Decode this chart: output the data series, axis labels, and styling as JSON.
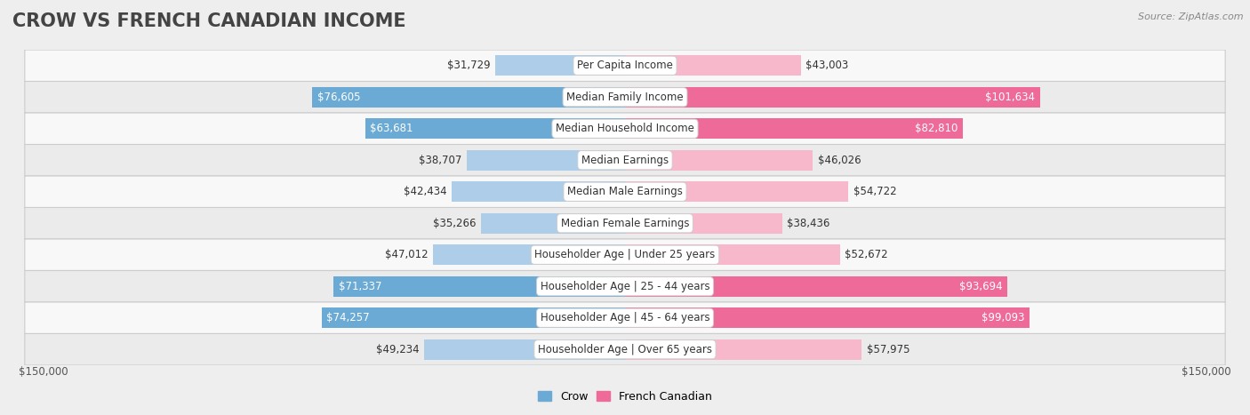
{
  "title": "CROW VS FRENCH CANADIAN INCOME",
  "source": "Source: ZipAtlas.com",
  "categories": [
    "Per Capita Income",
    "Median Family Income",
    "Median Household Income",
    "Median Earnings",
    "Median Male Earnings",
    "Median Female Earnings",
    "Householder Age | Under 25 years",
    "Householder Age | 25 - 44 years",
    "Householder Age | 45 - 64 years",
    "Householder Age | Over 65 years"
  ],
  "crow_values": [
    31729,
    76605,
    63681,
    38707,
    42434,
    35266,
    47012,
    71337,
    74257,
    49234
  ],
  "french_values": [
    43003,
    101634,
    82810,
    46026,
    54722,
    38436,
    52672,
    93694,
    99093,
    57975
  ],
  "crow_labels": [
    "$31,729",
    "$76,605",
    "$63,681",
    "$38,707",
    "$42,434",
    "$35,266",
    "$47,012",
    "$71,337",
    "$74,257",
    "$49,234"
  ],
  "french_labels": [
    "$43,003",
    "$101,634",
    "$82,810",
    "$46,026",
    "$54,722",
    "$38,436",
    "$52,672",
    "$93,694",
    "$99,093",
    "$57,975"
  ],
  "crow_color_light": "#aecde8",
  "crow_color_dark": "#6aaad4",
  "french_color_light": "#f8b8cc",
  "french_color_dark": "#ee6a99",
  "max_value": 150000,
  "bg_color": "#eeeeee",
  "row_bg_even": "#f8f8f8",
  "row_bg_odd": "#ebebeb",
  "legend_crow": "Crow",
  "legend_french": "French Canadian",
  "xlabel_left": "$150,000",
  "xlabel_right": "$150,000",
  "title_fontsize": 15,
  "label_fontsize": 8.5,
  "white_text_threshold_crow": 55000,
  "white_text_threshold_french": 75000
}
